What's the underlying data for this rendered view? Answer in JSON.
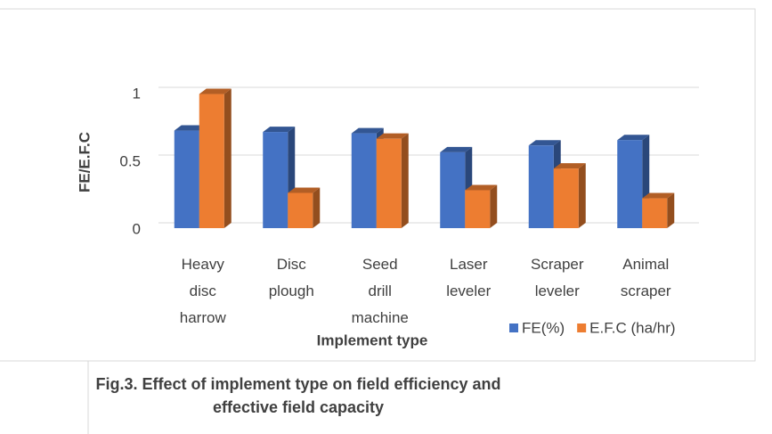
{
  "chart_data": {
    "type": "bar3d",
    "x_label": "Implement type",
    "y_label": "FE/E.F.C",
    "categories": [
      "Heavy disc harrow",
      "Disc plough",
      "Seed drill machine",
      "Laser leveler",
      "Scraper leveler",
      "Animal scraper"
    ],
    "series": [
      {
        "name": "FE(%)",
        "color": "#4472c4",
        "values": [
          0.72,
          0.71,
          0.7,
          0.56,
          0.61,
          0.65
        ]
      },
      {
        "name": "E.F.C (ha/hr)",
        "color": "#ed7d31",
        "values": [
          0.99,
          0.26,
          0.66,
          0.28,
          0.44,
          0.22
        ]
      }
    ],
    "ylim": [
      0,
      1
    ],
    "yticks": [
      0,
      0.5,
      1
    ],
    "grid": true,
    "legend": "bottom-right",
    "caption": "Fig.3.  Effect of implement type on field efficiency and effective field capacity"
  }
}
